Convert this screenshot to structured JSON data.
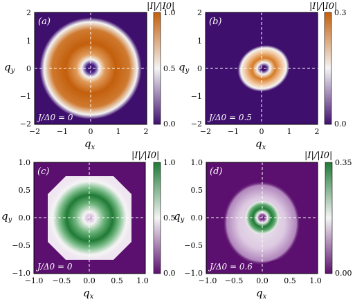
{
  "chart_data": [
    {
      "type": "heatmap",
      "panel_label": "(a)",
      "annotation": "J/Δ0 = 0",
      "xlabel": "qx",
      "ylabel": "qy",
      "xlim": [
        -2,
        2
      ],
      "ylim": [
        -2,
        2
      ],
      "xticks": [
        "−2",
        "−1",
        "0",
        "1",
        "2"
      ],
      "yticks": [
        "2",
        "1",
        "0",
        "−1",
        "−2"
      ],
      "colorbar": {
        "title": "|I|/|I0|",
        "range": [
          0.0,
          1.0
        ],
        "ticks": [
          "1.0",
          "0.5",
          "0.0"
        ],
        "colormap": "purple-white-orange"
      },
      "colors": {
        "low": "#3f0f6e",
        "mid": "#f4f4f4",
        "high": "#c35f0c"
      },
      "pattern": "ring",
      "center": [
        0,
        0
      ],
      "inner_radius": 0.3,
      "outer_radius": 1.85,
      "peak": 1.0,
      "guide_lines": "dashed white lines at qx=0 and qy=0"
    },
    {
      "type": "heatmap",
      "panel_label": "(b)",
      "annotation": "J/Δ0 = 0.5",
      "xlabel": "qx",
      "ylabel": "qy",
      "xlim": [
        -2,
        2
      ],
      "ylim": [
        -2,
        2
      ],
      "xticks": [
        "−2",
        "−1",
        "0",
        "1",
        "2"
      ],
      "yticks": [
        "2",
        "1",
        "0",
        "−1",
        "−2"
      ],
      "colorbar": {
        "title": "|I|/|I0|",
        "range": [
          0.0,
          0.3
        ],
        "ticks": [
          "0.3",
          "0.0"
        ],
        "colormap": "purple-white-orange"
      },
      "colors": {
        "low": "#3f0f6e",
        "mid": "#f4f4f4",
        "high": "#c35f0c"
      },
      "pattern": "distorted ring",
      "center": [
        0.05,
        0.0
      ],
      "inner_radius": 0.15,
      "outer_radius": 0.9,
      "peak": 0.28,
      "guide_lines": "dashed white lines at qx=0 and qy=0"
    },
    {
      "type": "heatmap",
      "panel_label": "(c)",
      "annotation": "J/Δ0 = 0",
      "xlabel": "qx",
      "ylabel": "qy",
      "xlim": [
        -1,
        1
      ],
      "ylim": [
        -1,
        1
      ],
      "xticks": [
        "−1.0",
        "−0.5",
        "0.0",
        "0.5",
        "1.0"
      ],
      "yticks": [
        "1.0",
        "0.5",
        "0.0",
        "−0.5",
        "−1.0"
      ],
      "colorbar": {
        "title": "|I|/|I0|",
        "range": [
          0.0,
          1.0
        ],
        "ticks": [
          "1.0",
          "0.5",
          "0.0"
        ],
        "colormap": "purple-white-green"
      },
      "colors": {
        "low": "#5b0f6e",
        "mid": "#f4f4f4",
        "high": "#1f7a35"
      },
      "pattern": "octagonal ring",
      "center": [
        0,
        0
      ],
      "inner_radius": 0.25,
      "outer_radius": 0.75,
      "peak": 1.0,
      "guide_lines": "dashed white lines at qx=0 and qy=0"
    },
    {
      "type": "heatmap",
      "panel_label": "(d)",
      "annotation": "J/Δ0 = 0.6",
      "xlabel": "qx",
      "ylabel": "qy",
      "xlim": [
        -1,
        1
      ],
      "ylim": [
        -1,
        1
      ],
      "xticks": [
        "−1.0",
        "−0.5",
        "0.0",
        "0.5",
        "1.0"
      ],
      "yticks": [
        "1.0",
        "0.5",
        "0.0",
        "−0.5",
        "−1.0"
      ],
      "colorbar": {
        "title": "|I|/|I0|",
        "range": [
          0.0,
          0.35
        ],
        "ticks": [
          "0.35",
          "0.00"
        ],
        "colormap": "purple-white-green"
      },
      "colors": {
        "low": "#5b0f6e",
        "mid": "#f4f4f4",
        "high": "#1f7a35"
      },
      "pattern": "small ring with diffuse halo",
      "center": [
        0.0,
        0.0
      ],
      "inner_radius": 0.08,
      "outer_radius": 0.3,
      "peak": 0.32,
      "guide_lines": "dashed white lines at qx=0 and qy=0"
    }
  ]
}
